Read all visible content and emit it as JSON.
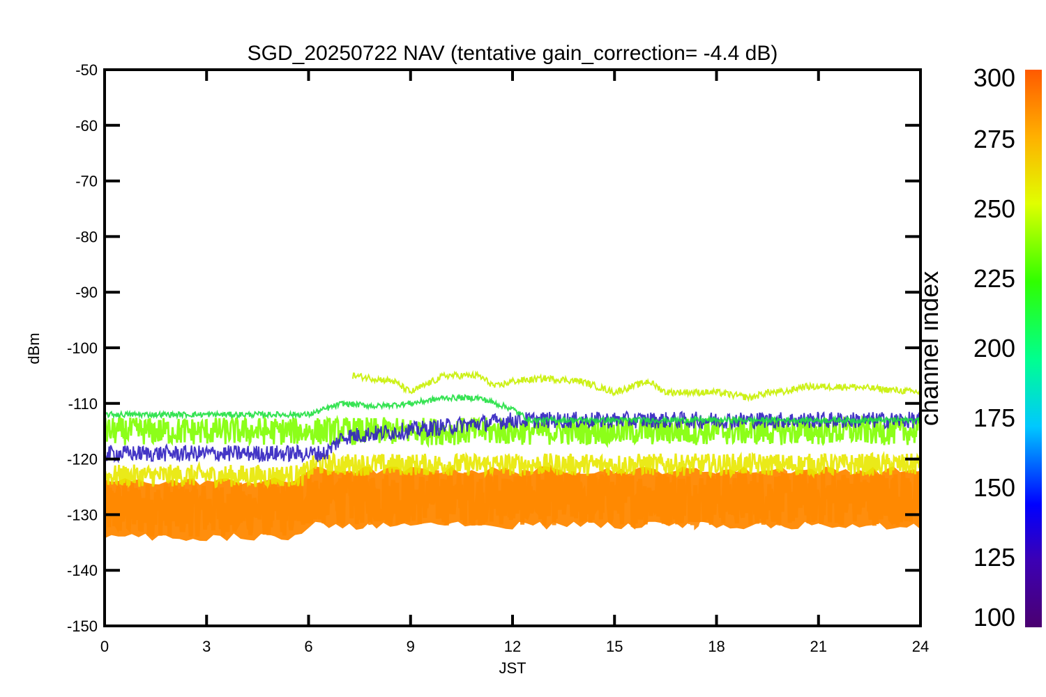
{
  "chart_data": {
    "type": "line",
    "title": "SGD_20250722 NAV (tentative gain_correction= -4.4 dB)",
    "xlabel": "JST",
    "ylabel": "dBm",
    "xlim": [
      0,
      24
    ],
    "ylim": [
      -150,
      -50
    ],
    "xticks": [
      0,
      3,
      6,
      9,
      12,
      15,
      18,
      21,
      24
    ],
    "yticks": [
      -50,
      -60,
      -70,
      -80,
      -90,
      -100,
      -110,
      -120,
      -130,
      -140,
      -150
    ],
    "colorbar": {
      "label": "channel index",
      "range": [
        100,
        300
      ],
      "ticks": [
        300,
        275,
        250,
        225,
        200,
        175,
        150,
        125,
        100
      ]
    },
    "series": [
      {
        "name": "orange noise band (ch ~290)",
        "color": "#ff8800",
        "center": [
          {
            "x": 0,
            "y": -129
          },
          {
            "x": 5.5,
            "y": -129
          },
          {
            "x": 6,
            "y": -127
          },
          {
            "x": 24,
            "y": -127
          }
        ],
        "spread": 5
      },
      {
        "name": "yellow band (ch ~270)",
        "color": "#e8e800",
        "center": [
          {
            "x": 0,
            "y": -123
          },
          {
            "x": 5.8,
            "y": -123
          },
          {
            "x": 6.2,
            "y": -121
          },
          {
            "x": 24,
            "y": -121
          }
        ],
        "spread": 2
      },
      {
        "name": "lime band (ch ~255)",
        "color": "#80ff00",
        "center": [
          {
            "x": 0,
            "y": -115
          },
          {
            "x": 24,
            "y": -115
          }
        ],
        "spread": 2.5
      },
      {
        "name": "blue/violet traces (ch ~120-140)",
        "color": "#3020c0",
        "center": [
          {
            "x": 0,
            "y": -119
          },
          {
            "x": 6.5,
            "y": -119
          },
          {
            "x": 7,
            "y": -116
          },
          {
            "x": 12,
            "y": -113
          },
          {
            "x": 24,
            "y": -113
          }
        ],
        "spread": 1.5
      },
      {
        "name": "green trace (ch ~215)",
        "color": "#20e040",
        "center": [
          {
            "x": 0,
            "y": -112
          },
          {
            "x": 6,
            "y": -112
          },
          {
            "x": 7,
            "y": -110
          },
          {
            "x": 8,
            "y": -110.5
          },
          {
            "x": 9,
            "y": -110
          },
          {
            "x": 10,
            "y": -109
          },
          {
            "x": 11,
            "y": -109
          },
          {
            "x": 12,
            "y": -111
          },
          {
            "x": 12.5,
            "y": -113
          },
          {
            "x": 24,
            "y": -113
          }
        ],
        "spread": 0.5
      },
      {
        "name": "yellow-green trace (ch ~265)",
        "color": "#c8f000",
        "center": [
          {
            "x": 7.3,
            "y": -105
          },
          {
            "x": 8.5,
            "y": -106
          },
          {
            "x": 9,
            "y": -108
          },
          {
            "x": 10,
            "y": -105
          },
          {
            "x": 11,
            "y": -105
          },
          {
            "x": 11.5,
            "y": -107
          },
          {
            "x": 12,
            "y": -106
          },
          {
            "x": 13,
            "y": -105.5
          },
          {
            "x": 14,
            "y": -106
          },
          {
            "x": 15,
            "y": -108
          },
          {
            "x": 16,
            "y": -106
          },
          {
            "x": 16.5,
            "y": -108
          },
          {
            "x": 18,
            "y": -108
          },
          {
            "x": 19,
            "y": -109
          },
          {
            "x": 19.5,
            "y": -108
          },
          {
            "x": 20,
            "y": -108
          },
          {
            "x": 20.5,
            "y": -107
          },
          {
            "x": 22,
            "y": -107
          },
          {
            "x": 24,
            "y": -108
          }
        ],
        "spread": 0.6
      }
    ]
  }
}
